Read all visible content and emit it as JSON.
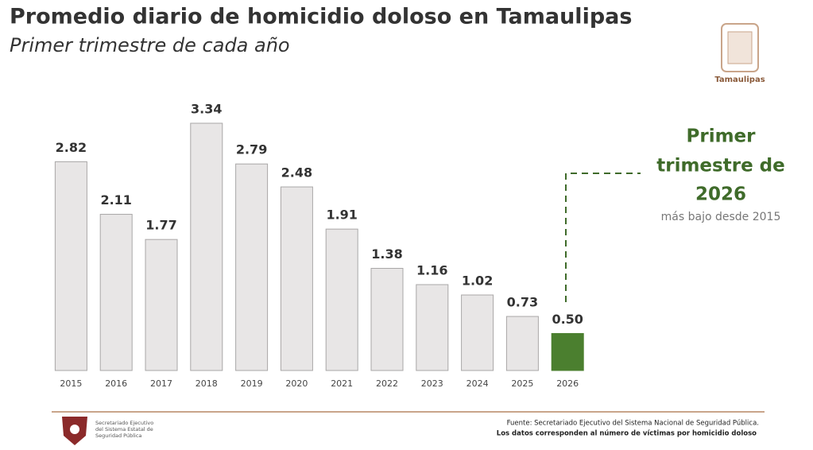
{
  "chart_data": {
    "type": "bar",
    "title": "Promedio diario de homicidio doloso en Tamaulipas",
    "subtitle": "Primer trimestre de cada año",
    "categories": [
      "2015",
      "2016",
      "2017",
      "2018",
      "2019",
      "2020",
      "2021",
      "2022",
      "2023",
      "2024",
      "2025",
      "2026"
    ],
    "values": [
      2.82,
      2.11,
      1.77,
      3.34,
      2.79,
      2.48,
      1.91,
      1.38,
      1.16,
      1.02,
      0.73,
      0.5
    ],
    "value_labels": [
      "2.82",
      "2.11",
      "1.77",
      "3.34",
      "2.79",
      "2.48",
      "1.91",
      "1.38",
      "1.16",
      "1.02",
      "0.73",
      "0.50"
    ],
    "colors": [
      "#e8e6e6",
      "#e8e6e6",
      "#e8e6e6",
      "#e8e6e6",
      "#e8e6e6",
      "#e8e6e6",
      "#e8e6e6",
      "#e8e6e6",
      "#e8e6e6",
      "#e8e6e6",
      "#e8e6e6",
      "#4b7f2f"
    ],
    "annotation": {
      "lines": [
        "Primer",
        "trimestre de",
        "2026"
      ],
      "note": "más bajo desde 2015"
    },
    "logo_label": "Tamaulipas",
    "footer": {
      "org_lines": [
        "Secretariado Ejecutivo",
        "del Sistema Estatal de",
        "Seguridad Pública"
      ],
      "source": "Fuente: Secretariado Ejecutivo del Sistema Nacional de Seguridad Pública.",
      "note": "Los datos corresponden al número de víctimas por homicidio doloso"
    }
  }
}
